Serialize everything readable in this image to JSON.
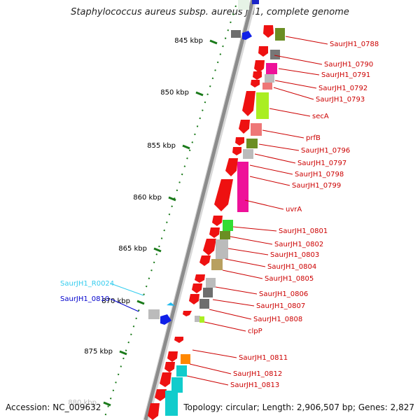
{
  "title": "Staphylococcus aureus subsp. aureus JH1, complete genome",
  "footer": {
    "accession": "Accession: NC_009632",
    "summary": "Topology: circular; Length: 2,906,507 bp; Genes: 2,827"
  },
  "colors": {
    "backbone": "#8c8c8c",
    "cds_forward": "#ff0000",
    "tick": "#1a7a1a",
    "label_line": "#cc0000",
    "rna_label": "#33ccee",
    "blue_label": "#0000cc"
  },
  "ticks": [
    "845 kbp",
    "850 kbp",
    "855 kbp",
    "860 kbp",
    "865 kbp",
    "870 kbp",
    "875 kbp",
    "880 kbp"
  ],
  "labels_right": [
    "SaurJH1_0788",
    "SaurJH1_0790",
    "SaurJH1_0791",
    "SaurJH1_0792",
    "SaurJH1_0793",
    "secA",
    "prfB",
    "SaurJH1_0796",
    "SaurJH1_0797",
    "SaurJH1_0798",
    "SaurJH1_0799",
    "uvrA",
    "SaurJH1_0801",
    "SaurJH1_0802",
    "SaurJH1_0803",
    "SaurJH1_0804",
    "SaurJH1_0805",
    "SaurJH1_0806",
    "SaurJH1_0807",
    "SaurJH1_0808",
    "clpP",
    "SaurJH1_0811",
    "SaurJH1_0812",
    "SaurJH1_0813"
  ],
  "labels_left": [
    "SaurJH1_R0024",
    "SaurJH1_0810"
  ]
}
